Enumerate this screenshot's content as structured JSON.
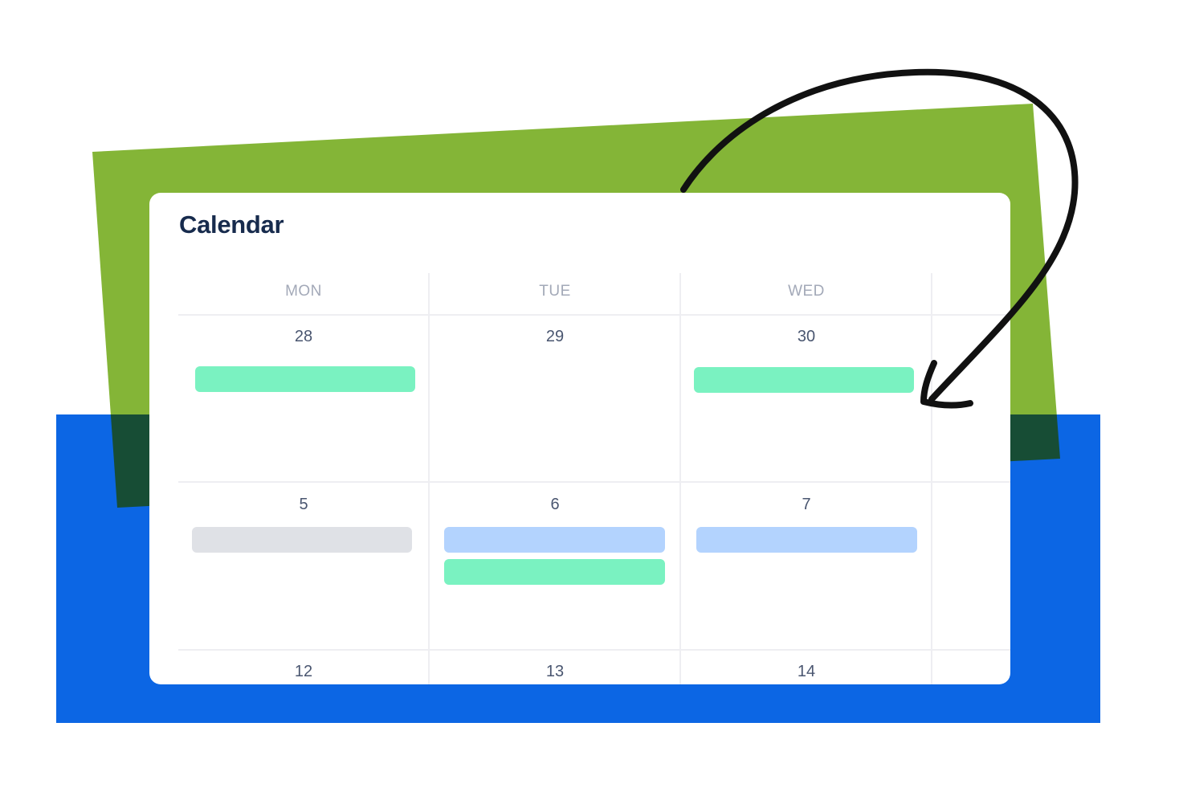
{
  "title": "Calendar",
  "colors": {
    "green_panel": "#84b537",
    "blue_panel": "#0c66e4",
    "overlap": "#174d35",
    "event_green": "#7af2c1",
    "event_blue": "#b3d3fe",
    "event_gray": "#dfe1e6"
  },
  "weekdays": [
    "MON",
    "TUE",
    "WED"
  ],
  "weeks": [
    {
      "dates": [
        "28",
        "29",
        "30"
      ]
    },
    {
      "dates": [
        "5",
        "6",
        "7"
      ]
    },
    {
      "dates": [
        "12",
        "13",
        "14"
      ]
    }
  ],
  "events": [
    {
      "week": 0,
      "day": "MON",
      "color": "green"
    },
    {
      "week": 0,
      "day": "WED",
      "color": "green"
    },
    {
      "week": 1,
      "day": "MON",
      "color": "gray"
    },
    {
      "week": 1,
      "day": "TUE",
      "color": "blue"
    },
    {
      "week": 1,
      "day": "TUE",
      "color": "green"
    },
    {
      "week": 1,
      "day": "WED",
      "color": "blue"
    }
  ],
  "decoration": "curved-arrow-icon"
}
